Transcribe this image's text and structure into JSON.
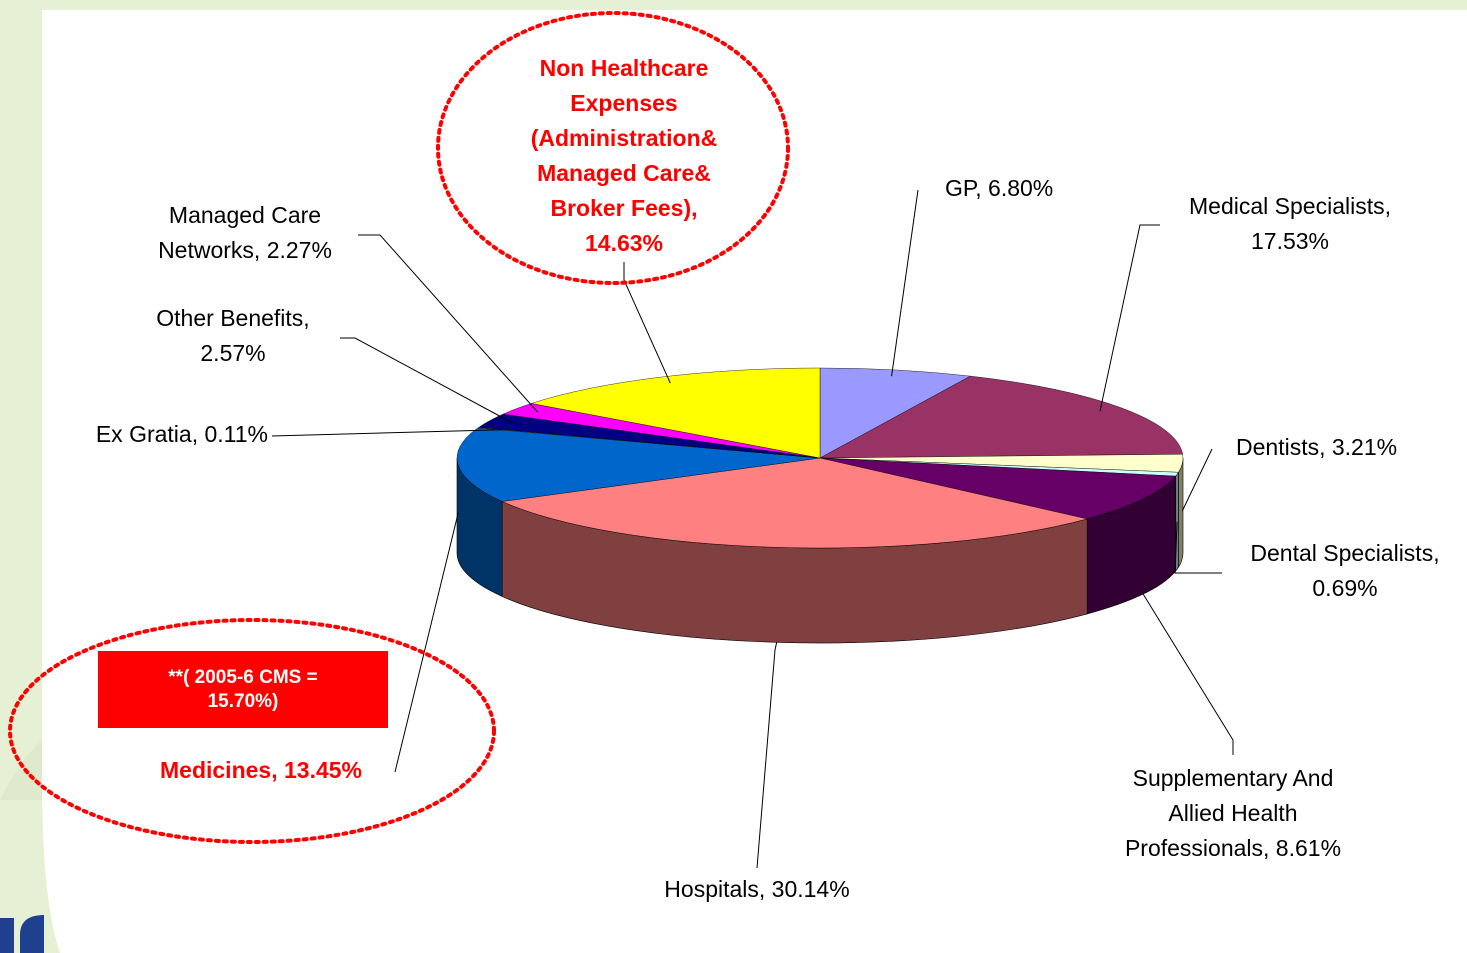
{
  "chart_data": {
    "type": "pie",
    "style": "3d",
    "start_angle": -90,
    "values": [
      6.8,
      17.53,
      3.21,
      0.69,
      8.61,
      30.14,
      13.45,
      0.11,
      2.57,
      2.27,
      14.63
    ],
    "value_labels": [
      "GP, 6.80%",
      "Medical Specialists,\n17.53%",
      "Dentists, 3.21%",
      "Dental Specialists,\n0.69%",
      "Supplementary And\nAllied Health\nProfessionals, 8.61%",
      "Hospitals, 30.14%",
      "Medicines, 13.45%",
      "Ex Gratia, 0.11%",
      "Other Benefits,\n2.57%",
      "Managed Care\nNetworks, 2.27%",
      "Non Healthcare\nExpenses\n(Administration&\nManaged Care&\nBroker Fees),\n14.63%"
    ],
    "colors": [
      "#9999ff",
      "#993366",
      "#ffffcc",
      "#ccffff",
      "#660066",
      "#ff8080",
      "#0066cc",
      "#c0c0c0",
      "#000080",
      "#ff00ff",
      "#ffff00"
    ],
    "label_colors": [
      "#000000",
      "#000000",
      "#000000",
      "#000000",
      "#000000",
      "#000000",
      "#ff0000",
      "#000000",
      "#000000",
      "#000000",
      "#ff0000"
    ],
    "annotations": [
      {
        "text": "**( 2005-6 CMS =\n15.70%)"
      }
    ]
  }
}
